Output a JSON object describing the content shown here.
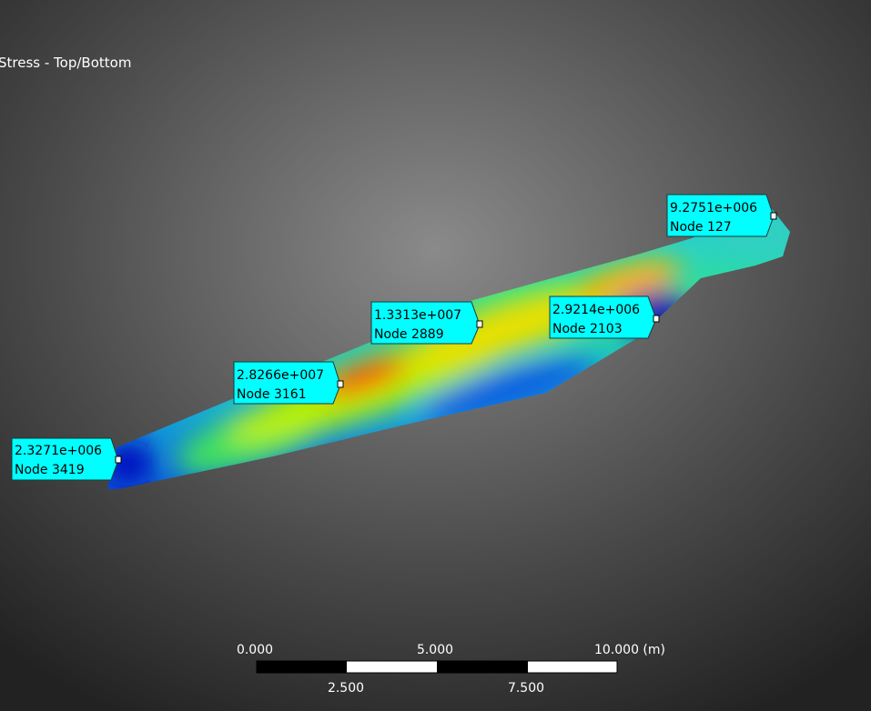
{
  "header": {
    "title": "Stress - Top/Bottom"
  },
  "probes": [
    {
      "value": "9.2751e+006",
      "node": "Node 127"
    },
    {
      "value": "1.3313e+007",
      "node": "Node 2889"
    },
    {
      "value": "2.9214e+006",
      "node": "Node 2103"
    },
    {
      "value": "2.8266e+007",
      "node": "Node 3161"
    },
    {
      "value": "2.3271e+006",
      "node": "Node 3419"
    }
  ],
  "scale_bar": {
    "top_labels": [
      "0.000",
      "5.000",
      "10.000 (m)"
    ],
    "bottom_labels": [
      "2.500",
      "7.500"
    ]
  }
}
